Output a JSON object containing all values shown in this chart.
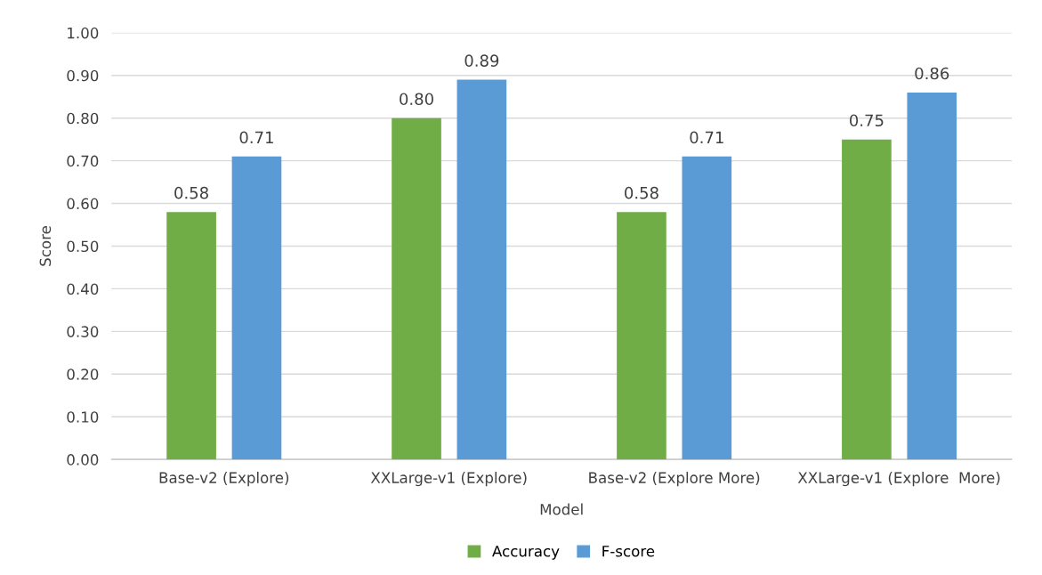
{
  "chart_data": {
    "type": "bar",
    "xlabel": "Model",
    "ylabel": "Score",
    "categories": [
      "Base-v2 (Explore)",
      "XXLarge-v1 (Explore)",
      "Base-v2 (Explore More)",
      "XXLarge-v1 (Explore  More)"
    ],
    "series": [
      {
        "name": "Accuracy",
        "color": "#70ad47",
        "values": [
          0.58,
          0.8,
          0.58,
          0.75
        ],
        "value_labels": [
          "0.58",
          "0.80",
          "0.58",
          "0.75"
        ]
      },
      {
        "name": "F-score",
        "color": "#5b9bd5",
        "values": [
          0.71,
          0.89,
          0.71,
          0.86
        ],
        "value_labels": [
          "0.71",
          "0.89",
          "0.71",
          "0.86"
        ]
      }
    ],
    "ylim": [
      0,
      1
    ],
    "yticks": [
      {
        "value": 0,
        "label": "0.00"
      },
      {
        "value": 0.1,
        "label": "0.10"
      },
      {
        "value": 0.2,
        "label": "0.20"
      },
      {
        "value": 0.3,
        "label": "0.30"
      },
      {
        "value": 0.4,
        "label": "0.40"
      },
      {
        "value": 0.5,
        "label": "0.50"
      },
      {
        "value": 0.6,
        "label": "0.60"
      },
      {
        "value": 0.7,
        "label": "0.70"
      },
      {
        "value": 0.8,
        "label": "0.80"
      },
      {
        "value": 0.9,
        "label": "0.90"
      },
      {
        "value": 1,
        "label": "1.00"
      }
    ],
    "grid": "y",
    "legend": "bottom"
  }
}
